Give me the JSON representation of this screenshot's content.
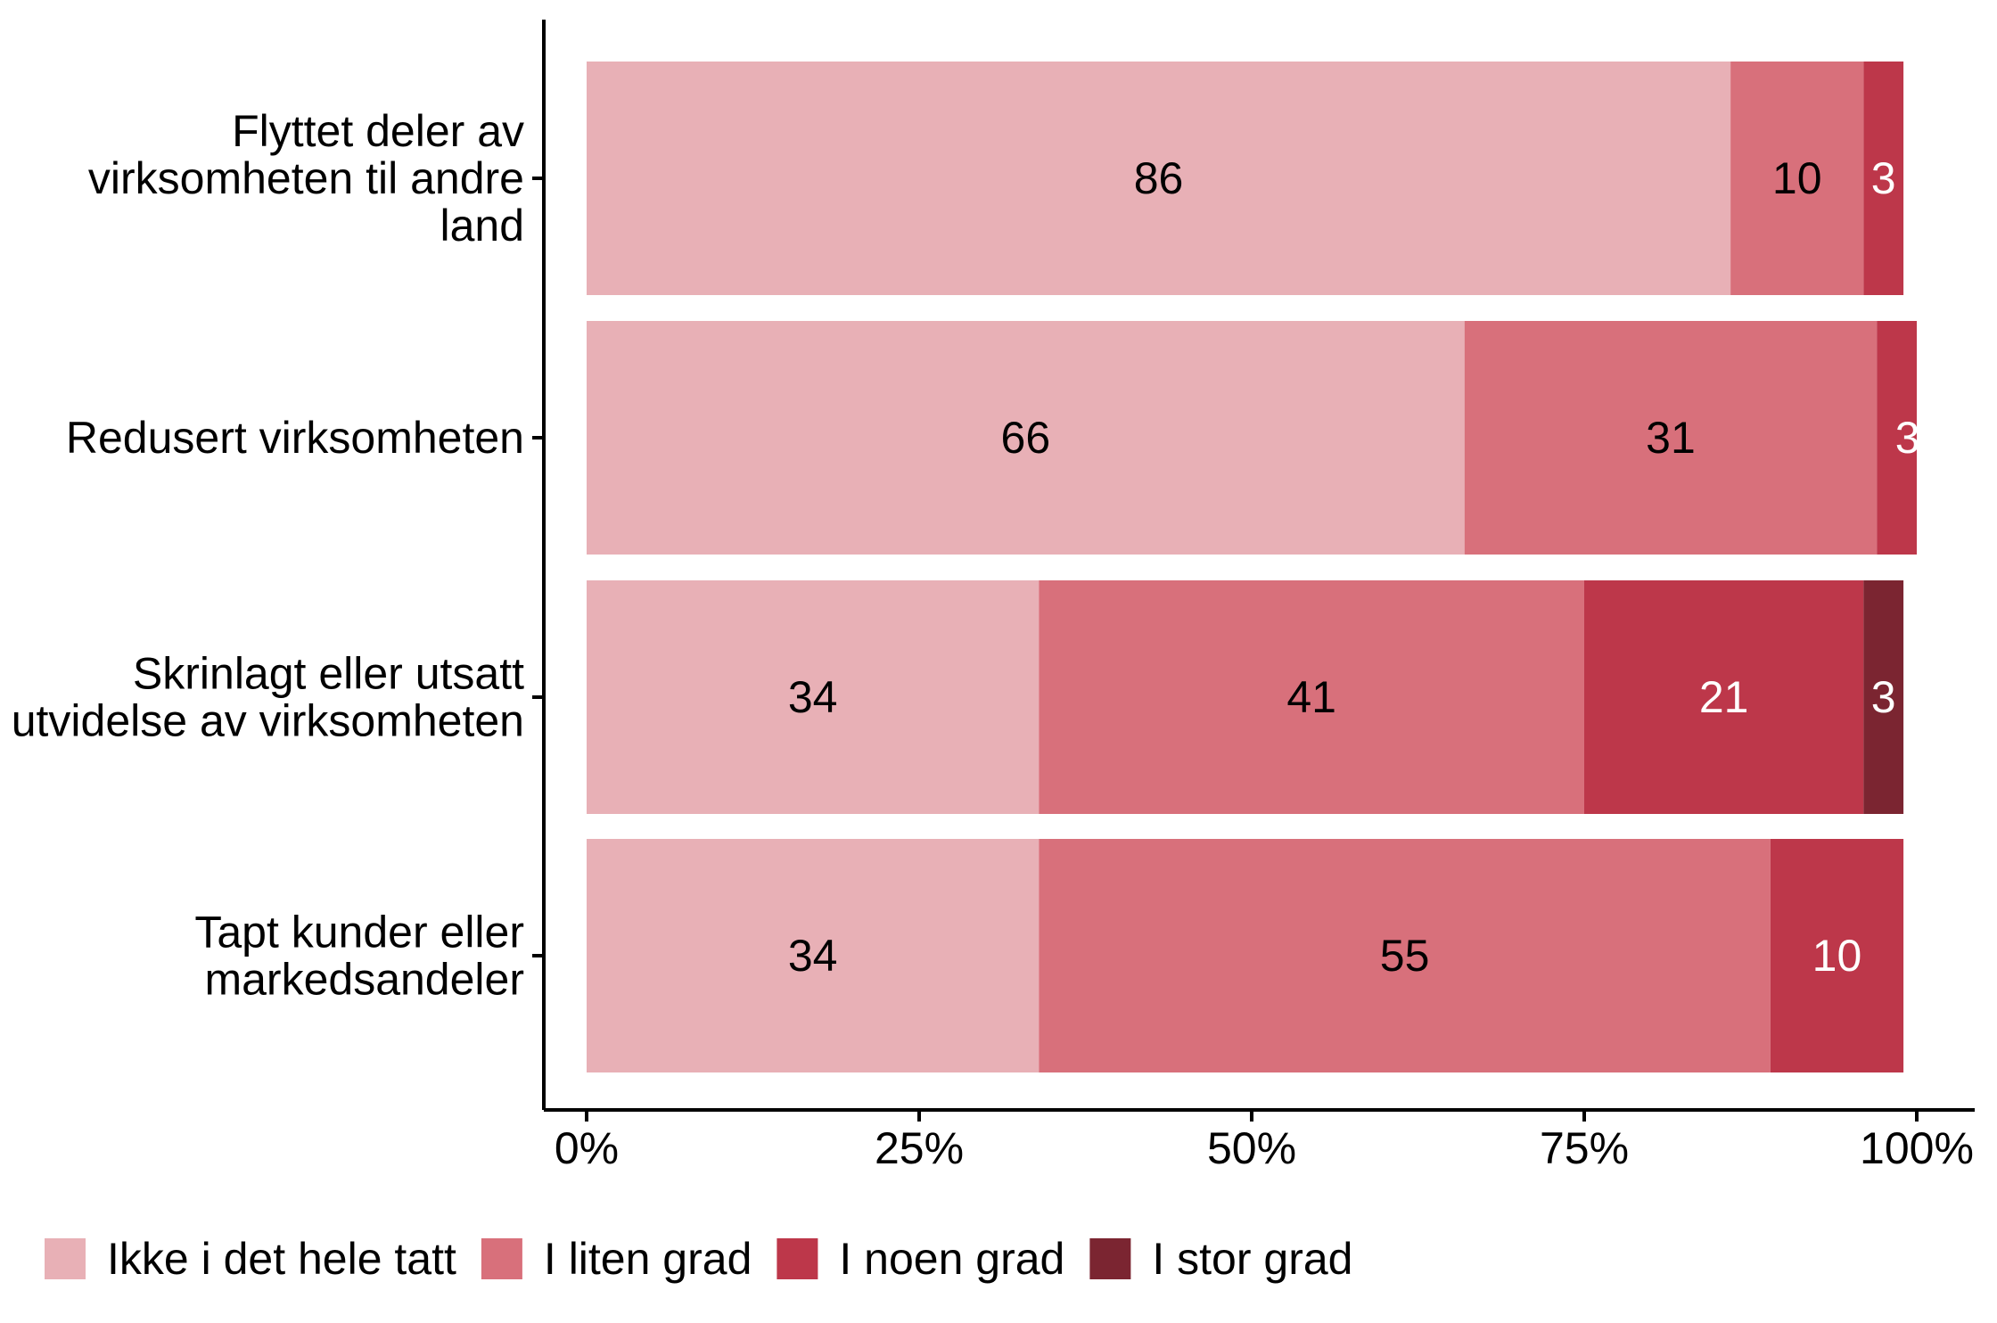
{
  "chart_data": {
    "type": "bar",
    "orientation": "horizontal",
    "stacked": true,
    "categories": [
      [
        "Flyttet deler av",
        "virksomheten til andre",
        "land"
      ],
      [
        "Redusert virksomheten"
      ],
      [
        "Skrinlagt eller utsatt",
        "utvidelse av virksomheten"
      ],
      [
        "Tapt kunder eller",
        "markedsandeler"
      ]
    ],
    "series": [
      {
        "name": "Ikke i det hele tatt",
        "color": "#e8b0b6",
        "label_color": "#000000",
        "values": [
          86,
          66,
          34,
          34
        ]
      },
      {
        "name": "I liten grad",
        "color": "#d8707b",
        "label_color": "#000000",
        "values": [
          10,
          31,
          41,
          55
        ]
      },
      {
        "name": "I noen grad",
        "color": "#bd374a",
        "label_color": "#ffffff",
        "values": [
          3,
          3,
          21,
          10
        ]
      },
      {
        "name": "I stor grad",
        "color": "#7b2531",
        "label_color": "#ffffff",
        "values": [
          0,
          0,
          3,
          0
        ]
      }
    ],
    "xlim": [
      0,
      100
    ],
    "x_ticks": [
      "0%",
      "25%",
      "50%",
      "75%",
      "100%"
    ],
    "grid": false,
    "legend_position": "bottom-left"
  }
}
